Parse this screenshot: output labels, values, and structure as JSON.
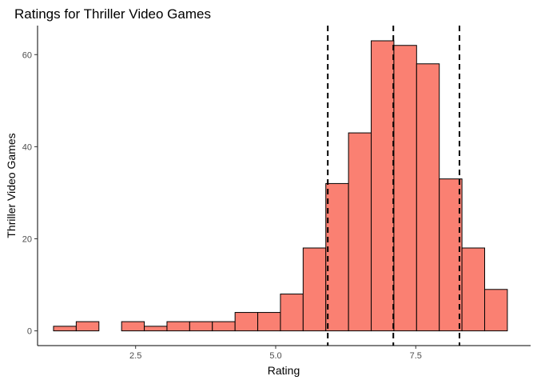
{
  "chart_data": {
    "type": "histogram",
    "title": "Ratings for Thriller Video Games",
    "xlabel": "Rating",
    "ylabel": "Thriller Video Games",
    "xlim": [
      0.75,
      9.55
    ],
    "ylim": [
      -3.2,
      66.3
    ],
    "x_ticks": [
      {
        "value": 2.5,
        "label": "2.5"
      },
      {
        "value": 5.0,
        "label": "5.0"
      },
      {
        "value": 7.5,
        "label": "7.5"
      }
    ],
    "y_ticks": [
      {
        "value": 0,
        "label": "0"
      },
      {
        "value": 20,
        "label": "20"
      },
      {
        "value": 40,
        "label": "40"
      },
      {
        "value": 60,
        "label": "60"
      }
    ],
    "bin_width": 0.405,
    "bins": [
      {
        "x0": 1.035,
        "count": 1
      },
      {
        "x0": 1.44,
        "count": 2
      },
      {
        "x0": 1.845,
        "count": 0
      },
      {
        "x0": 2.25,
        "count": 2
      },
      {
        "x0": 2.655,
        "count": 1
      },
      {
        "x0": 3.06,
        "count": 2
      },
      {
        "x0": 3.465,
        "count": 2
      },
      {
        "x0": 3.87,
        "count": 2
      },
      {
        "x0": 4.275,
        "count": 4
      },
      {
        "x0": 4.68,
        "count": 4
      },
      {
        "x0": 5.085,
        "count": 8
      },
      {
        "x0": 5.49,
        "count": 18
      },
      {
        "x0": 5.895,
        "count": 32
      },
      {
        "x0": 6.3,
        "count": 43
      },
      {
        "x0": 6.705,
        "count": 63
      },
      {
        "x0": 7.11,
        "count": 62
      },
      {
        "x0": 7.515,
        "count": 58
      },
      {
        "x0": 7.92,
        "count": 33
      },
      {
        "x0": 8.325,
        "count": 18
      },
      {
        "x0": 8.73,
        "count": 9
      }
    ],
    "vlines": [
      5.93,
      7.1,
      8.28
    ],
    "grid": false,
    "colors": {
      "bar_fill": "#fa8072",
      "bar_stroke": "#000000",
      "vline": "#000000"
    }
  }
}
